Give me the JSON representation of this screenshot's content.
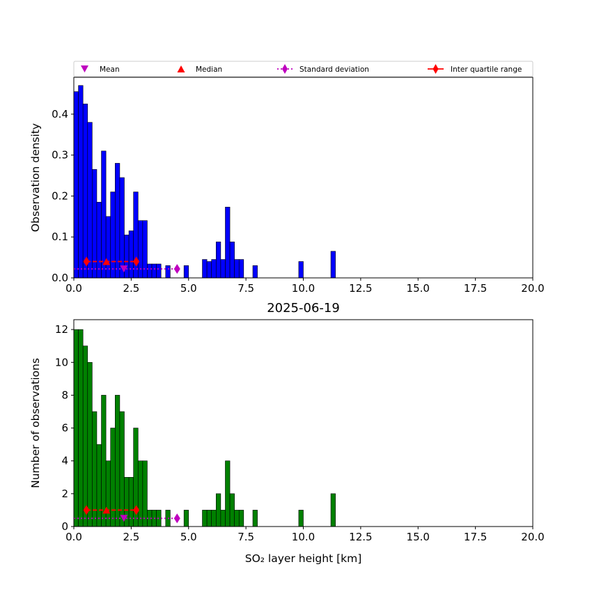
{
  "chart_data": [
    {
      "type": "bar",
      "title": "",
      "xlabel": "",
      "ylabel": "Observation density",
      "xlim": [
        0,
        20
      ],
      "ylim": [
        0,
        0.49
      ],
      "xticks": [
        "0.0",
        "2.5",
        "5.0",
        "7.5",
        "10.0",
        "12.5",
        "15.0",
        "17.5",
        "20.0"
      ],
      "yticks": [
        "0.0",
        "0.1",
        "0.2",
        "0.3",
        "0.4"
      ],
      "bar_color": "#0000ff",
      "bin_width": 0.2,
      "bins": [
        0.0,
        0.2,
        0.4,
        0.6,
        0.8,
        1.0,
        1.2,
        1.4,
        1.6,
        1.8,
        2.0,
        2.2,
        2.4,
        2.6,
        2.8,
        3.0,
        3.2,
        3.4,
        3.6,
        4.0,
        4.8,
        5.6,
        5.8,
        6.0,
        6.2,
        6.4,
        6.6,
        6.8,
        7.0,
        7.2,
        7.8,
        9.8,
        11.2
      ],
      "values": [
        0.455,
        0.47,
        0.425,
        0.38,
        0.265,
        0.185,
        0.31,
        0.15,
        0.21,
        0.28,
        0.245,
        0.105,
        0.115,
        0.21,
        0.14,
        0.14,
        0.034,
        0.034,
        0.034,
        0.03,
        0.03,
        0.045,
        0.04,
        0.045,
        0.088,
        0.045,
        0.173,
        0.088,
        0.045,
        0.045,
        0.03,
        0.04,
        0.065
      ],
      "mean": 2.18,
      "median": 1.42,
      "std_range": [
        0.0,
        4.5
      ],
      "iqr": [
        0.55,
        2.72
      ],
      "marker_y_stats": 0.022,
      "marker_y_iqr": 0.04
    },
    {
      "type": "bar",
      "title": "2025-06-19",
      "xlabel": "SO₂ layer height [km]",
      "ylabel": "Number of observations",
      "xlim": [
        0,
        20
      ],
      "ylim": [
        0,
        12.6
      ],
      "xticks": [
        "0.0",
        "2.5",
        "5.0",
        "7.5",
        "10.0",
        "12.5",
        "15.0",
        "17.5",
        "20.0"
      ],
      "yticks": [
        "0",
        "2",
        "4",
        "6",
        "8",
        "10",
        "12"
      ],
      "bar_color": "#008000",
      "bin_width": 0.2,
      "bins": [
        0.0,
        0.2,
        0.4,
        0.6,
        0.8,
        1.0,
        1.2,
        1.4,
        1.6,
        1.8,
        2.0,
        2.2,
        2.4,
        2.6,
        2.8,
        3.0,
        3.2,
        3.4,
        3.6,
        4.0,
        4.8,
        5.6,
        5.8,
        6.0,
        6.2,
        6.4,
        6.6,
        6.8,
        7.0,
        7.2,
        7.8,
        9.8,
        11.2
      ],
      "values": [
        12,
        12,
        11,
        10,
        7,
        5,
        8,
        4,
        6,
        8,
        7,
        3,
        3,
        6,
        4,
        4,
        1,
        1,
        1,
        1,
        1,
        1,
        1,
        1,
        2,
        1,
        4,
        2,
        1,
        1,
        1,
        1,
        2
      ],
      "mean": 2.18,
      "median": 1.42,
      "std_range": [
        0.0,
        4.5
      ],
      "iqr": [
        0.55,
        2.72
      ],
      "marker_y_stats": 0.5,
      "marker_y_iqr": 1.0
    }
  ],
  "legend": {
    "placement": "top",
    "items": [
      {
        "label": "Mean",
        "marker": "triangle-down",
        "color": "#bf00bf"
      },
      {
        "label": "Median",
        "marker": "triangle-up",
        "color": "#ff0000"
      },
      {
        "label": "Standard deviation",
        "marker": "diamond-dotted",
        "color": "#bf00bf"
      },
      {
        "label": "Inter quartile range",
        "marker": "diamond-line",
        "color": "#ff0000"
      }
    ]
  }
}
